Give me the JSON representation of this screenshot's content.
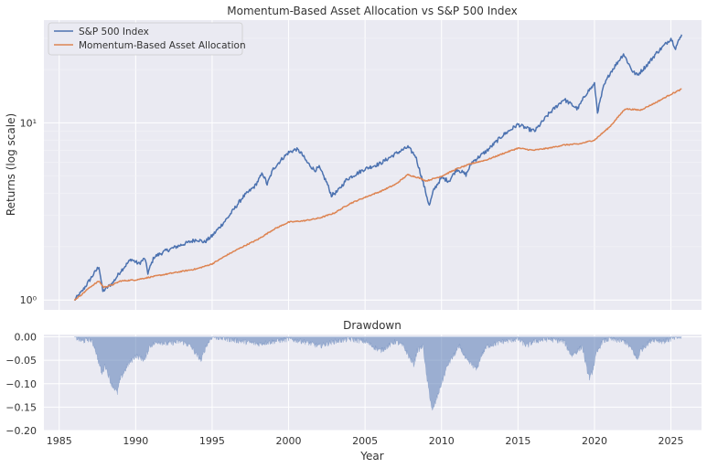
{
  "chart_data": [
    {
      "type": "line",
      "title": "Momentum-Based Asset Allocation vs S&P 500 Index",
      "xlabel": "",
      "ylabel": "Returns (log scale)",
      "y_scale": "log",
      "xlim": [
        1984,
        2027
      ],
      "ylim": [
        0.88,
        38
      ],
      "x_ticks": [
        1985,
        1990,
        1995,
        2000,
        2005,
        2010,
        2015,
        2020,
        2025
      ],
      "y_ticks": [
        {
          "value": 1,
          "label": "10⁰"
        },
        {
          "value": 10,
          "label": "10¹"
        }
      ],
      "grid": true,
      "legend": "top-left",
      "series": [
        {
          "name": "S&P 500 Index",
          "color": "#4c72b0",
          "points": [
            [
              1986.0,
              1.0
            ],
            [
              1986.5,
              1.12
            ],
            [
              1987.0,
              1.3
            ],
            [
              1987.6,
              1.55
            ],
            [
              1987.85,
              1.12
            ],
            [
              1988.5,
              1.25
            ],
            [
              1989.0,
              1.45
            ],
            [
              1989.7,
              1.7
            ],
            [
              1990.2,
              1.6
            ],
            [
              1990.6,
              1.72
            ],
            [
              1990.8,
              1.42
            ],
            [
              1991.2,
              1.75
            ],
            [
              1992.0,
              1.9
            ],
            [
              1993.0,
              2.05
            ],
            [
              1994.0,
              2.2
            ],
            [
              1994.5,
              2.12
            ],
            [
              1995.0,
              2.3
            ],
            [
              1996.0,
              2.9
            ],
            [
              1997.0,
              3.8
            ],
            [
              1997.8,
              4.4
            ],
            [
              1998.3,
              5.2
            ],
            [
              1998.6,
              4.5
            ],
            [
              1999.0,
              5.5
            ],
            [
              1999.6,
              6.3
            ],
            [
              2000.0,
              6.8
            ],
            [
              2000.5,
              7.1
            ],
            [
              2000.8,
              6.8
            ],
            [
              2001.2,
              6.0
            ],
            [
              2001.7,
              5.4
            ],
            [
              2002.0,
              5.6
            ],
            [
              2002.5,
              4.6
            ],
            [
              2002.8,
              3.9
            ],
            [
              2003.2,
              4.1
            ],
            [
              2003.8,
              4.8
            ],
            [
              2004.5,
              5.2
            ],
            [
              2005.0,
              5.5
            ],
            [
              2006.0,
              5.9
            ],
            [
              2007.0,
              6.7
            ],
            [
              2007.8,
              7.3
            ],
            [
              2008.3,
              6.5
            ],
            [
              2008.8,
              4.6
            ],
            [
              2009.2,
              3.4
            ],
            [
              2009.5,
              4.2
            ],
            [
              2010.0,
              4.9
            ],
            [
              2010.5,
              4.7
            ],
            [
              2011.0,
              5.5
            ],
            [
              2011.6,
              5.1
            ],
            [
              2012.0,
              6.0
            ],
            [
              2013.0,
              7.0
            ],
            [
              2014.0,
              8.5
            ],
            [
              2015.0,
              9.8
            ],
            [
              2015.7,
              9.2
            ],
            [
              2016.1,
              9.0
            ],
            [
              2017.0,
              11.2
            ],
            [
              2018.0,
              13.6
            ],
            [
              2018.9,
              12.0
            ],
            [
              2019.5,
              14.8
            ],
            [
              2020.0,
              16.5
            ],
            [
              2020.2,
              11.5
            ],
            [
              2020.6,
              16.0
            ],
            [
              2021.0,
              19.0
            ],
            [
              2021.9,
              24.5
            ],
            [
              2022.5,
              19.5
            ],
            [
              2022.8,
              18.6
            ],
            [
              2023.5,
              21.5
            ],
            [
              2024.0,
              24.5
            ],
            [
              2024.5,
              27.0
            ],
            [
              2025.0,
              30.0
            ],
            [
              2025.3,
              26.5
            ],
            [
              2025.7,
              31.5
            ]
          ]
        },
        {
          "name": "Momentum-Based Asset Allocation",
          "color": "#dd8452",
          "points": [
            [
              1986.0,
              1.0
            ],
            [
              1986.5,
              1.08
            ],
            [
              1987.0,
              1.18
            ],
            [
              1987.6,
              1.28
            ],
            [
              1987.9,
              1.18
            ],
            [
              1988.5,
              1.22
            ],
            [
              1989.0,
              1.28
            ],
            [
              1990.0,
              1.3
            ],
            [
              1991.0,
              1.35
            ],
            [
              1992.0,
              1.4
            ],
            [
              1993.0,
              1.45
            ],
            [
              1994.0,
              1.5
            ],
            [
              1995.0,
              1.6
            ],
            [
              1996.0,
              1.8
            ],
            [
              1997.0,
              2.0
            ],
            [
              1998.0,
              2.2
            ],
            [
              1999.0,
              2.5
            ],
            [
              2000.0,
              2.75
            ],
            [
              2001.0,
              2.8
            ],
            [
              2002.0,
              2.9
            ],
            [
              2003.0,
              3.1
            ],
            [
              2004.0,
              3.5
            ],
            [
              2005.0,
              3.8
            ],
            [
              2006.0,
              4.1
            ],
            [
              2007.0,
              4.5
            ],
            [
              2007.8,
              5.1
            ],
            [
              2008.5,
              4.9
            ],
            [
              2009.0,
              4.7
            ],
            [
              2010.0,
              5.0
            ],
            [
              2011.0,
              5.5
            ],
            [
              2012.0,
              5.9
            ],
            [
              2013.0,
              6.2
            ],
            [
              2014.0,
              6.7
            ],
            [
              2015.0,
              7.2
            ],
            [
              2016.0,
              7.0
            ],
            [
              2017.0,
              7.2
            ],
            [
              2018.0,
              7.5
            ],
            [
              2019.0,
              7.6
            ],
            [
              2020.0,
              8.0
            ],
            [
              2021.0,
              9.5
            ],
            [
              2022.0,
              12.0
            ],
            [
              2023.0,
              11.8
            ],
            [
              2024.0,
              13.0
            ],
            [
              2025.0,
              14.5
            ],
            [
              2025.7,
              15.5
            ]
          ]
        }
      ]
    },
    {
      "type": "area",
      "title": "Drawdown",
      "xlabel": "Year",
      "ylabel": "",
      "xlim": [
        1984,
        2027
      ],
      "ylim": [
        -0.2,
        0.005
      ],
      "x_ticks": [
        1985,
        1990,
        1995,
        2000,
        2005,
        2010,
        2015,
        2020,
        2025
      ],
      "y_ticks": [
        0.0,
        -0.05,
        -0.1,
        -0.15,
        -0.2
      ],
      "y_tick_labels": [
        "0.00",
        "−0.05",
        "−0.10",
        "−0.15",
        "−0.20"
      ],
      "grid": true,
      "series": [
        {
          "color": "#4c72b0",
          "points": [
            [
              1986.0,
              0.0
            ],
            [
              1986.5,
              -0.01
            ],
            [
              1987.0,
              -0.005
            ],
            [
              1987.3,
              -0.02
            ],
            [
              1987.8,
              -0.08
            ],
            [
              1988.0,
              -0.06
            ],
            [
              1988.4,
              -0.1
            ],
            [
              1988.8,
              -0.12
            ],
            [
              1989.0,
              -0.09
            ],
            [
              1989.5,
              -0.06
            ],
            [
              1990.0,
              -0.04
            ],
            [
              1990.6,
              -0.05
            ],
            [
              1990.9,
              -0.02
            ],
            [
              1991.5,
              -0.01
            ],
            [
              1992.0,
              -0.015
            ],
            [
              1993.0,
              -0.01
            ],
            [
              1993.6,
              -0.02
            ],
            [
              1994.0,
              -0.04
            ],
            [
              1994.3,
              -0.05
            ],
            [
              1994.6,
              -0.02
            ],
            [
              1995.0,
              0.0
            ],
            [
              1996.0,
              -0.005
            ],
            [
              1997.0,
              -0.01
            ],
            [
              1998.0,
              -0.015
            ],
            [
              1999.0,
              -0.01
            ],
            [
              2000.0,
              -0.005
            ],
            [
              2001.0,
              -0.01
            ],
            [
              2002.0,
              -0.02
            ],
            [
              2003.0,
              -0.01
            ],
            [
              2004.0,
              -0.005
            ],
            [
              2005.0,
              -0.01
            ],
            [
              2005.5,
              -0.02
            ],
            [
              2006.0,
              -0.03
            ],
            [
              2006.5,
              -0.02
            ],
            [
              2007.0,
              -0.01
            ],
            [
              2007.5,
              -0.02
            ],
            [
              2008.0,
              -0.05
            ],
            [
              2008.2,
              -0.06
            ],
            [
              2008.4,
              -0.03
            ],
            [
              2008.8,
              -0.02
            ],
            [
              2009.0,
              -0.08
            ],
            [
              2009.2,
              -0.12
            ],
            [
              2009.4,
              -0.16
            ],
            [
              2009.6,
              -0.14
            ],
            [
              2010.0,
              -0.1
            ],
            [
              2010.4,
              -0.06
            ],
            [
              2010.8,
              -0.04
            ],
            [
              2011.2,
              -0.02
            ],
            [
              2011.6,
              -0.05
            ],
            [
              2012.0,
              -0.06
            ],
            [
              2012.3,
              -0.07
            ],
            [
              2012.6,
              -0.04
            ],
            [
              2013.0,
              -0.02
            ],
            [
              2014.0,
              -0.01
            ],
            [
              2015.0,
              -0.005
            ],
            [
              2015.6,
              -0.02
            ],
            [
              2016.0,
              -0.01
            ],
            [
              2017.0,
              -0.005
            ],
            [
              2018.0,
              -0.01
            ],
            [
              2018.5,
              -0.04
            ],
            [
              2018.9,
              -0.03
            ],
            [
              2019.2,
              -0.02
            ],
            [
              2019.5,
              -0.07
            ],
            [
              2019.7,
              -0.09
            ],
            [
              2019.9,
              -0.07
            ],
            [
              2020.1,
              -0.04
            ],
            [
              2020.5,
              -0.01
            ],
            [
              2021.0,
              -0.005
            ],
            [
              2022.0,
              -0.01
            ],
            [
              2022.5,
              -0.03
            ],
            [
              2022.8,
              -0.05
            ],
            [
              2023.0,
              -0.03
            ],
            [
              2023.3,
              -0.02
            ],
            [
              2023.8,
              -0.005
            ],
            [
              2024.5,
              -0.01
            ],
            [
              2025.0,
              -0.005
            ],
            [
              2025.7,
              0.0
            ]
          ]
        }
      ]
    }
  ]
}
